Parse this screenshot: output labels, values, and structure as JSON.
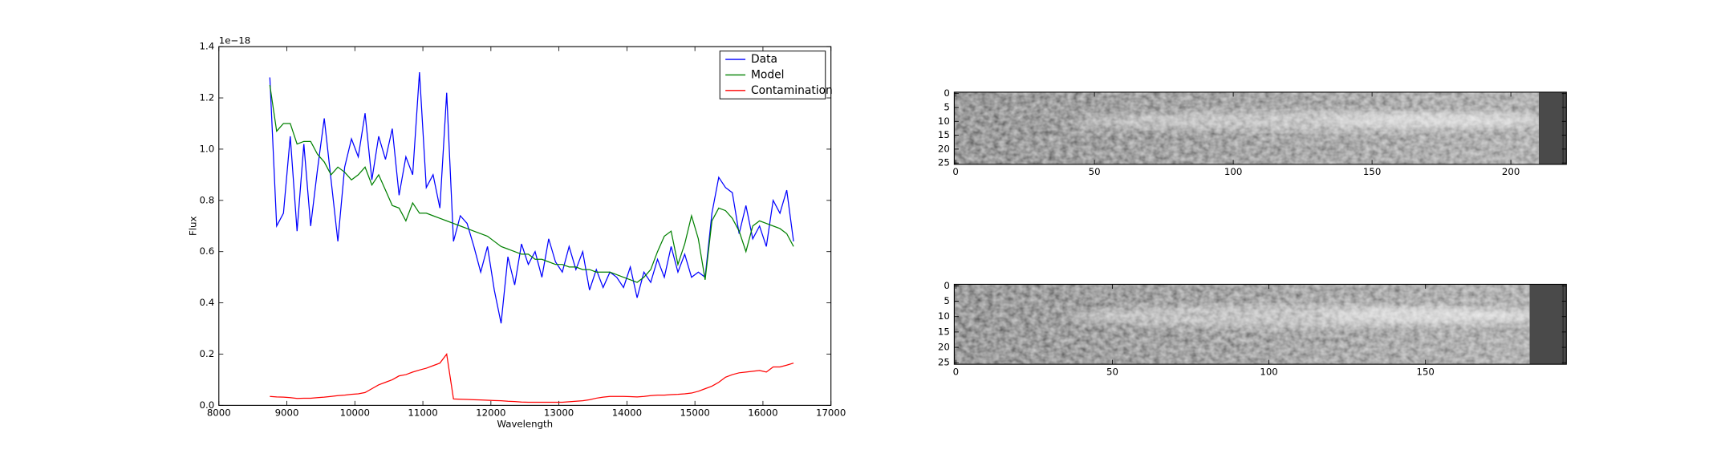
{
  "chart_data": [
    {
      "type": "line",
      "offset_label": "1e−18",
      "x_label": "Wavelength",
      "y_label": "Flux",
      "legend": "upper right",
      "xlim": [
        8000,
        17000
      ],
      "xticks": [
        8000,
        9000,
        10000,
        11000,
        12000,
        13000,
        14000,
        15000,
        16000,
        17000
      ],
      "ylim": [
        0,
        1.4
      ],
      "yticks": [
        {
          "value": 0,
          "label": "0.0"
        },
        0.2,
        0.4,
        0.6,
        0.8,
        {
          "value": 1,
          "label": "1.0"
        },
        1.2,
        1.4
      ],
      "x": [
        8750,
        8850,
        8950,
        9050,
        9150,
        9250,
        9350,
        9450,
        9550,
        9650,
        9750,
        9850,
        9950,
        10050,
        10150,
        10250,
        10350,
        10450,
        10550,
        10650,
        10750,
        10850,
        10950,
        11050,
        11150,
        11250,
        11350,
        11450,
        11550,
        11650,
        11750,
        11850,
        11950,
        12050,
        12150,
        12250,
        12350,
        12450,
        12550,
        12650,
        12750,
        12850,
        12950,
        13050,
        13150,
        13250,
        13350,
        13450,
        13550,
        13650,
        13750,
        13850,
        13950,
        14050,
        14150,
        14250,
        14350,
        14450,
        14550,
        14650,
        14750,
        14850,
        14950,
        15050,
        15150,
        15250,
        15350,
        15450,
        15550,
        15650,
        15750,
        15850,
        15950,
        16050,
        16150,
        16250,
        16350,
        16450
      ],
      "series": [
        {
          "name": "Data",
          "color": "#0000ff",
          "values": [
            1.28,
            0.7,
            0.75,
            1.05,
            0.68,
            1.02,
            0.7,
            0.92,
            1.12,
            0.88,
            0.64,
            0.93,
            1.04,
            0.97,
            1.14,
            0.88,
            1.05,
            0.96,
            1.08,
            0.82,
            0.97,
            0.9,
            1.3,
            0.85,
            0.9,
            0.77,
            1.22,
            0.64,
            0.74,
            0.71,
            0.62,
            0.52,
            0.62,
            0.45,
            0.32,
            0.58,
            0.47,
            0.63,
            0.55,
            0.6,
            0.5,
            0.65,
            0.56,
            0.52,
            0.62,
            0.53,
            0.6,
            0.45,
            0.53,
            0.46,
            0.52,
            0.5,
            0.46,
            0.54,
            0.42,
            0.52,
            0.48,
            0.57,
            0.5,
            0.62,
            0.52,
            0.59,
            0.5,
            0.52,
            0.5,
            0.75,
            0.89,
            0.85,
            0.83,
            0.67,
            0.78,
            0.65,
            0.7,
            0.62,
            0.8,
            0.75,
            0.84,
            0.64
          ]
        },
        {
          "name": "Model",
          "color": "#008000",
          "values": [
            1.25,
            1.07,
            1.1,
            1.1,
            1.02,
            1.03,
            1.03,
            0.98,
            0.95,
            0.9,
            0.93,
            0.91,
            0.88,
            0.9,
            0.93,
            0.86,
            0.9,
            0.84,
            0.78,
            0.77,
            0.72,
            0.79,
            0.75,
            0.75,
            0.74,
            0.73,
            0.72,
            0.71,
            0.7,
            0.69,
            0.68,
            0.67,
            0.66,
            0.64,
            0.62,
            0.61,
            0.6,
            0.59,
            0.59,
            0.57,
            0.57,
            0.56,
            0.55,
            0.55,
            0.54,
            0.54,
            0.53,
            0.53,
            0.52,
            0.52,
            0.52,
            0.51,
            0.5,
            0.49,
            0.48,
            0.5,
            0.53,
            0.6,
            0.66,
            0.68,
            0.55,
            0.63,
            0.74,
            0.65,
            0.49,
            0.72,
            0.77,
            0.76,
            0.73,
            0.68,
            0.6,
            0.7,
            0.72,
            0.71,
            0.7,
            0.69,
            0.67,
            0.62
          ]
        },
        {
          "name": "Contamination",
          "color": "#ff0000",
          "values": [
            0.035,
            0.033,
            0.032,
            0.03,
            0.027,
            0.028,
            0.028,
            0.03,
            0.032,
            0.035,
            0.038,
            0.04,
            0.043,
            0.045,
            0.05,
            0.065,
            0.08,
            0.09,
            0.1,
            0.115,
            0.12,
            0.13,
            0.138,
            0.145,
            0.155,
            0.165,
            0.2,
            0.025,
            0.024,
            0.023,
            0.022,
            0.021,
            0.02,
            0.019,
            0.018,
            0.016,
            0.015,
            0.013,
            0.012,
            0.012,
            0.012,
            0.012,
            0.012,
            0.012,
            0.014,
            0.016,
            0.018,
            0.022,
            0.028,
            0.032,
            0.035,
            0.035,
            0.035,
            0.034,
            0.033,
            0.035,
            0.038,
            0.04,
            0.04,
            0.042,
            0.043,
            0.045,
            0.048,
            0.055,
            0.065,
            0.075,
            0.09,
            0.11,
            0.12,
            0.127,
            0.13,
            0.133,
            0.136,
            0.13,
            0.15,
            0.15,
            0.157,
            0.165
          ]
        }
      ]
    },
    {
      "type": "image",
      "xlim": [
        -0.5,
        220
      ],
      "xticks": [
        0,
        50,
        100,
        150,
        200
      ],
      "ylim": [
        25.5,
        -0.5
      ],
      "yticks": [
        0,
        5,
        10,
        15,
        20,
        25
      ]
    },
    {
      "type": "image",
      "xlim": [
        -0.5,
        195
      ],
      "xticks": [
        0,
        50,
        100,
        150
      ],
      "ylim": [
        25.5,
        -0.5
      ],
      "yticks": [
        0,
        5,
        10,
        15,
        20,
        25
      ]
    }
  ]
}
